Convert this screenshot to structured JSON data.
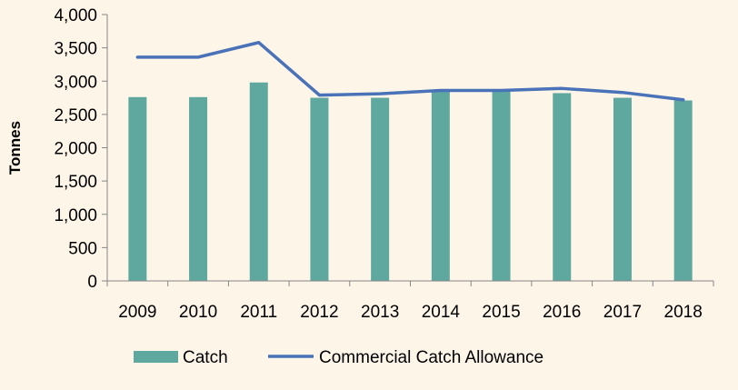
{
  "colors": {
    "background": "#fdf5e8",
    "bar": "#5fa8a0",
    "line": "#4a72b8",
    "axis": "#868686"
  },
  "chart_data": {
    "type": "bar",
    "title": "",
    "xlabel": "",
    "ylabel": "Tonnes",
    "ylim": [
      0,
      4000
    ],
    "yticks": [
      0,
      500,
      1000,
      1500,
      2000,
      2500,
      3000,
      3500,
      4000
    ],
    "ytick_labels": [
      "0",
      "500",
      "1,000",
      "1,500",
      "2,000",
      "2,500",
      "3,000",
      "3,500",
      "4,000"
    ],
    "categories": [
      "2009",
      "2010",
      "2011",
      "2012",
      "2013",
      "2014",
      "2015",
      "2016",
      "2017",
      "2018"
    ],
    "grid": false,
    "legend_position": "bottom",
    "series": [
      {
        "name": "Catch",
        "type": "bar",
        "values": [
          2760,
          2760,
          2980,
          2750,
          2750,
          2860,
          2860,
          2820,
          2750,
          2710
        ]
      },
      {
        "name": "Commercial Catch Allowance",
        "type": "line",
        "values": [
          3360,
          3360,
          3580,
          2790,
          2810,
          2860,
          2860,
          2890,
          2830,
          2720
        ]
      }
    ]
  }
}
